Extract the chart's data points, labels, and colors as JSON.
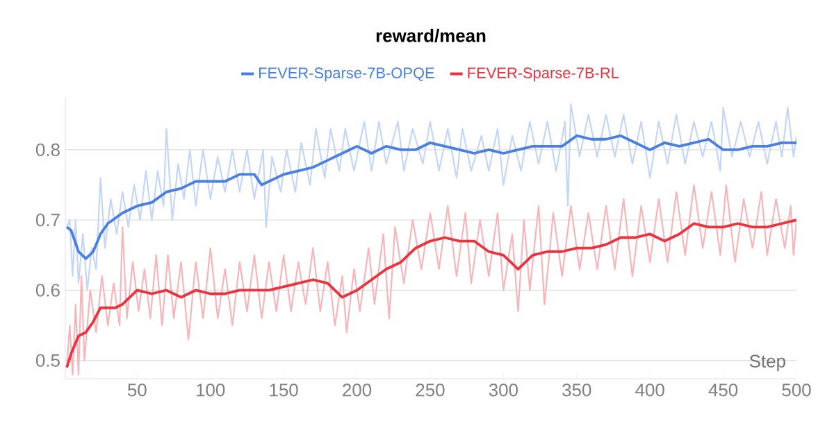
{
  "chart_data": {
    "type": "line",
    "title": "reward/mean",
    "xlabel": "Step",
    "xlim": [
      1,
      500
    ],
    "ylim": [
      0.474,
      0.875
    ],
    "xticks": [
      50,
      100,
      150,
      200,
      250,
      300,
      350,
      400,
      450,
      500
    ],
    "yticks": [
      0.5,
      0.6,
      0.7,
      0.8
    ],
    "grid": "y",
    "legend": "top",
    "marker": "none",
    "line_style": "solid",
    "series": [
      {
        "color": "#c4d6f5",
        "x": [
          2,
          4,
          6,
          8,
          10,
          13,
          16,
          19,
          22,
          25,
          28,
          32,
          36,
          40,
          44,
          48,
          52,
          56,
          60,
          64,
          68,
          70,
          74,
          78,
          82,
          86,
          90,
          95,
          100,
          105,
          110,
          115,
          120,
          125,
          130,
          136,
          138,
          142,
          148,
          152,
          158,
          162,
          168,
          172,
          178,
          182,
          188,
          192,
          198,
          205,
          210,
          215,
          220,
          228,
          232,
          238,
          245,
          250,
          256,
          262,
          268,
          272,
          278,
          285,
          290,
          296,
          300,
          306,
          312,
          318,
          324,
          330,
          336,
          342,
          344,
          346,
          352,
          358,
          364,
          370,
          376,
          382,
          388,
          394,
          400,
          406,
          412,
          418,
          424,
          430,
          436,
          442,
          448,
          450,
          456,
          462,
          468,
          474,
          480,
          486,
          490,
          494,
          498,
          500
        ],
        "values": [
          0.69,
          0.7,
          0.62,
          0.7,
          0.61,
          0.68,
          0.6,
          0.66,
          0.63,
          0.76,
          0.66,
          0.73,
          0.68,
          0.74,
          0.69,
          0.75,
          0.7,
          0.77,
          0.7,
          0.77,
          0.72,
          0.83,
          0.7,
          0.78,
          0.73,
          0.8,
          0.72,
          0.8,
          0.73,
          0.79,
          0.74,
          0.8,
          0.74,
          0.8,
          0.73,
          0.8,
          0.69,
          0.79,
          0.74,
          0.8,
          0.74,
          0.81,
          0.75,
          0.83,
          0.76,
          0.83,
          0.77,
          0.83,
          0.77,
          0.84,
          0.77,
          0.84,
          0.78,
          0.84,
          0.77,
          0.83,
          0.78,
          0.84,
          0.77,
          0.83,
          0.76,
          0.83,
          0.77,
          0.82,
          0.77,
          0.83,
          0.75,
          0.82,
          0.77,
          0.84,
          0.78,
          0.84,
          0.77,
          0.84,
          0.72,
          0.865,
          0.79,
          0.85,
          0.79,
          0.85,
          0.79,
          0.85,
          0.78,
          0.84,
          0.76,
          0.84,
          0.78,
          0.85,
          0.78,
          0.84,
          0.79,
          0.84,
          0.77,
          0.86,
          0.79,
          0.84,
          0.79,
          0.84,
          0.78,
          0.84,
          0.79,
          0.86,
          0.79,
          0.82
        ]
      },
      {
        "color": "#f5b5b9",
        "x": [
          2,
          4,
          6,
          8,
          10,
          12,
          14,
          18,
          22,
          26,
          30,
          34,
          38,
          40,
          43,
          47,
          51,
          55,
          59,
          63,
          67,
          71,
          75,
          80,
          85,
          90,
          95,
          100,
          105,
          110,
          115,
          120,
          125,
          130,
          135,
          140,
          145,
          150,
          155,
          160,
          165,
          170,
          175,
          180,
          185,
          190,
          193,
          198,
          202,
          208,
          212,
          218,
          222,
          226,
          232,
          238,
          244,
          250,
          256,
          262,
          268,
          274,
          278,
          284,
          290,
          296,
          300,
          306,
          310,
          314,
          318,
          324,
          328,
          334,
          340,
          346,
          352,
          358,
          364,
          370,
          376,
          382,
          388,
          394,
          400,
          406,
          412,
          418,
          424,
          430,
          436,
          442,
          448,
          452,
          458,
          464,
          470,
          476,
          480,
          486,
          492,
          496,
          498,
          500
        ],
        "values": [
          0.49,
          0.55,
          0.48,
          0.58,
          0.48,
          0.62,
          0.5,
          0.6,
          0.54,
          0.62,
          0.55,
          0.61,
          0.55,
          0.69,
          0.56,
          0.64,
          0.57,
          0.63,
          0.56,
          0.65,
          0.55,
          0.65,
          0.56,
          0.64,
          0.53,
          0.64,
          0.56,
          0.66,
          0.56,
          0.63,
          0.55,
          0.64,
          0.57,
          0.65,
          0.56,
          0.64,
          0.57,
          0.65,
          0.57,
          0.64,
          0.58,
          0.66,
          0.57,
          0.64,
          0.55,
          0.62,
          0.54,
          0.63,
          0.57,
          0.66,
          0.58,
          0.68,
          0.56,
          0.69,
          0.61,
          0.7,
          0.63,
          0.71,
          0.63,
          0.72,
          0.62,
          0.71,
          0.61,
          0.7,
          0.62,
          0.71,
          0.6,
          0.68,
          0.57,
          0.7,
          0.6,
          0.72,
          0.58,
          0.71,
          0.62,
          0.72,
          0.63,
          0.71,
          0.63,
          0.72,
          0.63,
          0.73,
          0.62,
          0.72,
          0.64,
          0.73,
          0.64,
          0.74,
          0.65,
          0.75,
          0.66,
          0.74,
          0.65,
          0.75,
          0.64,
          0.73,
          0.66,
          0.74,
          0.65,
          0.73,
          0.66,
          0.72,
          0.65,
          0.7
        ]
      },
      {
        "name": "FEVER-Sparse-7B-OPQE",
        "color": "#4a7fe0",
        "x": [
          2,
          5,
          10,
          15,
          20,
          25,
          30,
          40,
          50,
          60,
          70,
          80,
          90,
          100,
          110,
          120,
          130,
          135,
          150,
          160,
          170,
          180,
          190,
          200,
          210,
          220,
          230,
          240,
          250,
          260,
          270,
          280,
          290,
          300,
          310,
          320,
          330,
          340,
          350,
          360,
          370,
          380,
          390,
          400,
          410,
          420,
          430,
          440,
          450,
          460,
          470,
          480,
          490,
          500
        ],
        "values": [
          0.69,
          0.685,
          0.655,
          0.645,
          0.655,
          0.68,
          0.695,
          0.71,
          0.72,
          0.725,
          0.74,
          0.745,
          0.755,
          0.755,
          0.755,
          0.765,
          0.765,
          0.75,
          0.765,
          0.77,
          0.775,
          0.785,
          0.795,
          0.805,
          0.795,
          0.805,
          0.8,
          0.8,
          0.81,
          0.805,
          0.8,
          0.795,
          0.8,
          0.795,
          0.8,
          0.805,
          0.805,
          0.805,
          0.82,
          0.815,
          0.815,
          0.82,
          0.81,
          0.8,
          0.81,
          0.805,
          0.81,
          0.815,
          0.8,
          0.8,
          0.805,
          0.805,
          0.81,
          0.81
        ]
      },
      {
        "name": "FEVER-Sparse-7B-RL",
        "color": "#e8343f",
        "x": [
          2,
          5,
          10,
          15,
          20,
          25,
          30,
          35,
          40,
          45,
          50,
          60,
          70,
          80,
          90,
          100,
          110,
          120,
          130,
          140,
          150,
          160,
          170,
          180,
          190,
          200,
          210,
          220,
          230,
          240,
          250,
          260,
          270,
          280,
          290,
          300,
          310,
          320,
          330,
          340,
          350,
          360,
          370,
          380,
          390,
          400,
          410,
          420,
          430,
          440,
          450,
          460,
          470,
          480,
          490,
          500
        ],
        "values": [
          0.49,
          0.51,
          0.535,
          0.54,
          0.555,
          0.575,
          0.575,
          0.575,
          0.58,
          0.59,
          0.6,
          0.595,
          0.6,
          0.59,
          0.6,
          0.595,
          0.595,
          0.6,
          0.6,
          0.6,
          0.605,
          0.61,
          0.615,
          0.61,
          0.59,
          0.6,
          0.615,
          0.63,
          0.64,
          0.66,
          0.67,
          0.675,
          0.67,
          0.67,
          0.655,
          0.65,
          0.63,
          0.65,
          0.655,
          0.655,
          0.66,
          0.66,
          0.665,
          0.675,
          0.675,
          0.68,
          0.67,
          0.68,
          0.695,
          0.69,
          0.69,
          0.695,
          0.69,
          0.69,
          0.695,
          0.7
        ]
      }
    ]
  }
}
